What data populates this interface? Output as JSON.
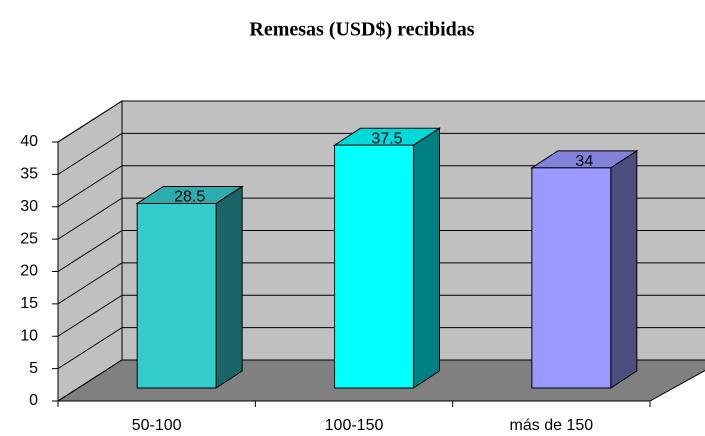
{
  "chart_data": {
    "type": "bar3d",
    "title": "Remesas (USD$) recibidas",
    "categories": [
      "50-100",
      "100-150",
      "más de 150"
    ],
    "values": [
      28.5,
      37.5,
      34
    ],
    "colors": [
      "#33cccc",
      "#00ffff",
      "#9999ff"
    ],
    "ylim": [
      0,
      40
    ],
    "yticks": [
      0,
      5,
      10,
      15,
      20,
      25,
      30,
      35,
      40
    ],
    "grid": true
  }
}
